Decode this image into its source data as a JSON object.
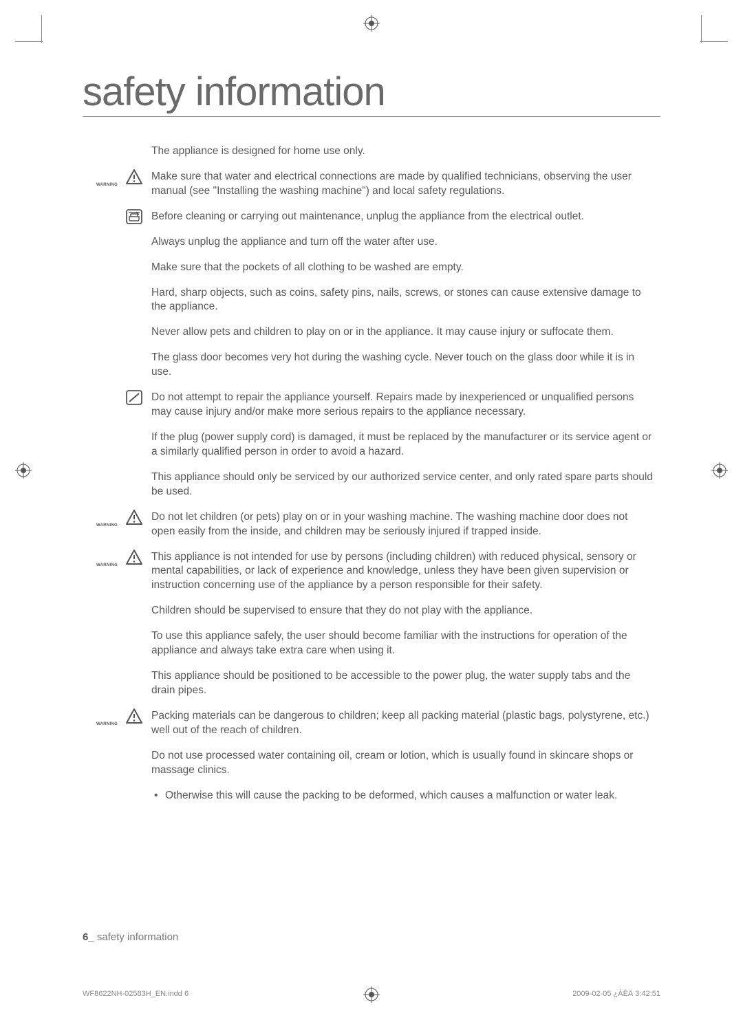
{
  "page": {
    "title": "safety information",
    "footer_page_num": "6_",
    "footer_text": "safety information",
    "print_file": "WF8622NH-02583H_EN.indd   6",
    "print_timestamp": "2009-02-05   ¿ÀÈÄ 3:42:51"
  },
  "icons": {
    "warning_label": "WARNING"
  },
  "items": [
    {
      "icon": null,
      "text": "The appliance is designed for home use only."
    },
    {
      "icon": "warning",
      "text": "Make sure that water and electrical connections are made by qualified technicians, observing the user manual (see \"Installing the washing machine\") and local safety regulations."
    },
    {
      "icon": "unplug",
      "text": "Before cleaning or carrying out maintenance, unplug the appliance from the electrical outlet."
    },
    {
      "icon": null,
      "text": "Always unplug the appliance and turn off the water after use."
    },
    {
      "icon": null,
      "text": "Make sure that the pockets of all clothing to be washed are empty."
    },
    {
      "icon": null,
      "text": "Hard, sharp objects, such as coins, safety pins, nails, screws, or stones can cause extensive damage to the appliance."
    },
    {
      "icon": null,
      "text": "Never allow pets and children to play on or in the appliance. It may cause injury or suffocate them."
    },
    {
      "icon": null,
      "text": "The glass door becomes very hot during the washing cycle. Never touch on the glass door while it is in use."
    },
    {
      "icon": "prohibit",
      "text": "Do not attempt to repair the appliance yourself. Repairs made by inexperienced or unqualified persons may cause injury and/or make more serious repairs to the appliance necessary."
    },
    {
      "icon": null,
      "text": "If the plug (power supply cord) is damaged, it must be replaced by the manufacturer or its service agent or a similarly qualified person in order to avoid a hazard."
    },
    {
      "icon": null,
      "text": "This appliance should only be serviced by our authorized service center, and only rated spare parts should be used."
    },
    {
      "icon": "warning",
      "text": "Do not let children (or pets) play on or in your washing machine. The washing machine door does not open easily from the inside, and children may be seriously injured if trapped inside."
    },
    {
      "icon": "warning",
      "text": "This appliance is not intended for use by persons (including children) with reduced physical, sensory or mental capabilities, or lack of experience and knowledge, unless they have been given supervision or instruction concerning use of the appliance by a person responsible for their safety."
    },
    {
      "icon": null,
      "text": "Children should be supervised to ensure that they do not play with the appliance."
    },
    {
      "icon": null,
      "text": "To use this appliance safely, the user should become familiar with the instructions for operation of the appliance and always take extra care when using it."
    },
    {
      "icon": null,
      "text": "This appliance should be positioned to be accessible to the power plug, the water supply tabs and the drain pipes."
    },
    {
      "icon": "warning",
      "text": "Packing materials can be dangerous to children; keep all packing material (plastic bags, polystyrene, etc.) well out of the reach of children."
    },
    {
      "icon": null,
      "text": "Do not use processed water containing oil, cream or lotion, which is usually found in skincare shops or massage clinics.",
      "bullets": [
        "Otherwise this will cause the packing to be deformed, which causes a malfunction or water leak."
      ]
    }
  ]
}
